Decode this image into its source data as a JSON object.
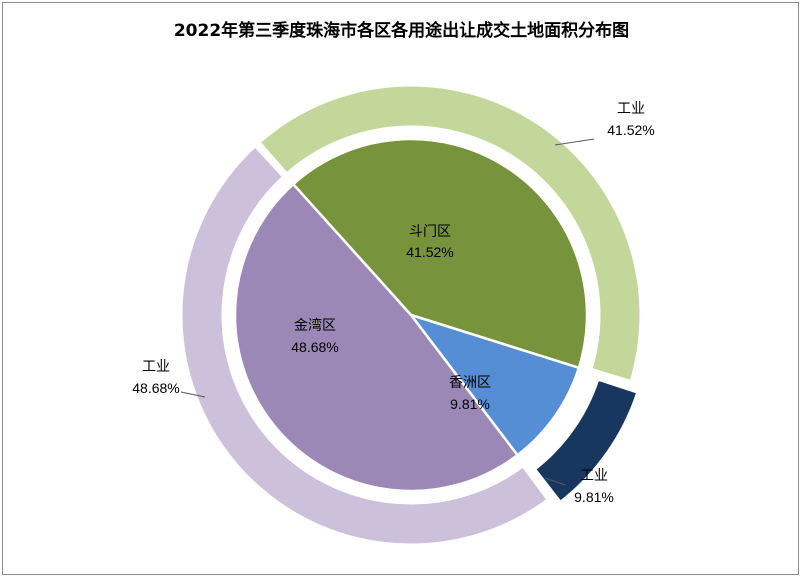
{
  "chart_data": {
    "type": "pie",
    "title": "2022年第三季度珠海市各区各用途出让成交土地面积分布图",
    "inner_ring": {
      "categories": [
        "斗门区",
        "香洲区",
        "金湾区"
      ],
      "values": [
        41.52,
        9.81,
        48.68
      ],
      "value_labels": [
        "41.52%",
        "9.81%",
        "48.68%"
      ],
      "colors": [
        "#77933c",
        "#558ed5",
        "#9b88b6"
      ]
    },
    "outer_ring": {
      "categories": [
        "工业",
        "工业",
        "工业"
      ],
      "parents": [
        "斗门区",
        "香洲区",
        "金湾区"
      ],
      "values": [
        41.52,
        9.81,
        48.68
      ],
      "value_labels": [
        "41.52%",
        "9.81%",
        "48.68%"
      ],
      "colors": [
        "#c4d79b",
        "#17375e",
        "#ccc0da"
      ]
    }
  }
}
